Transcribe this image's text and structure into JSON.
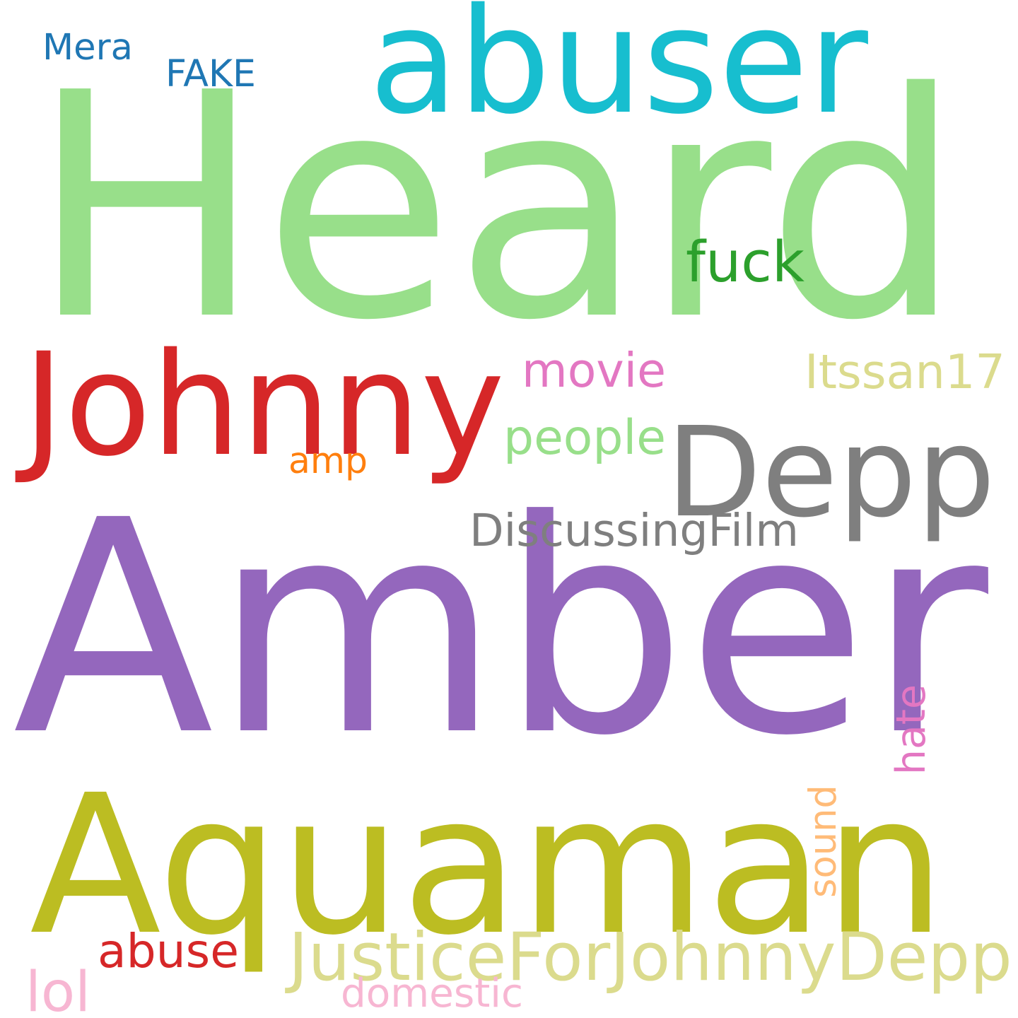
{
  "words": [
    {
      "text": "Heard",
      "color": "#98df8a",
      "vertical": false
    },
    {
      "text": "Amber",
      "color": "#9467bd",
      "vertical": false
    },
    {
      "text": "Aquaman",
      "color": "#bcbd22",
      "vertical": false
    },
    {
      "text": "abuser",
      "color": "#17becf",
      "vertical": false
    },
    {
      "text": "Johnny",
      "color": "#d62728",
      "vertical": false
    },
    {
      "text": "Depp",
      "color": "#7f7f7f",
      "vertical": false
    },
    {
      "text": "JusticeForJohnnyDepp",
      "color": "#dbdb8d",
      "vertical": false
    },
    {
      "text": "DiscussingFilm",
      "color": "#7f7f7f",
      "vertical": false
    },
    {
      "text": "Itssan17",
      "color": "#dbdb8d",
      "vertical": false
    },
    {
      "text": "fuck",
      "color": "#2ca02c",
      "vertical": false
    },
    {
      "text": "movie",
      "color": "#e377c2",
      "vertical": false
    },
    {
      "text": "people",
      "color": "#98df8a",
      "vertical": false
    },
    {
      "text": "abuse",
      "color": "#d62728",
      "vertical": false
    },
    {
      "text": "domestic",
      "color": "#f7b6d2",
      "vertical": false
    },
    {
      "text": "FAKE",
      "color": "#1f77b4",
      "vertical": false
    },
    {
      "text": "Mera",
      "color": "#1f77b4",
      "vertical": false
    },
    {
      "text": "amp",
      "color": "#ff7f0e",
      "vertical": false
    },
    {
      "text": "lol",
      "color": "#f7b6d2",
      "vertical": false
    },
    {
      "text": "hate",
      "color": "#e377c2",
      "vertical": true
    },
    {
      "text": "sound",
      "color": "#ffbb78",
      "vertical": true
    }
  ]
}
